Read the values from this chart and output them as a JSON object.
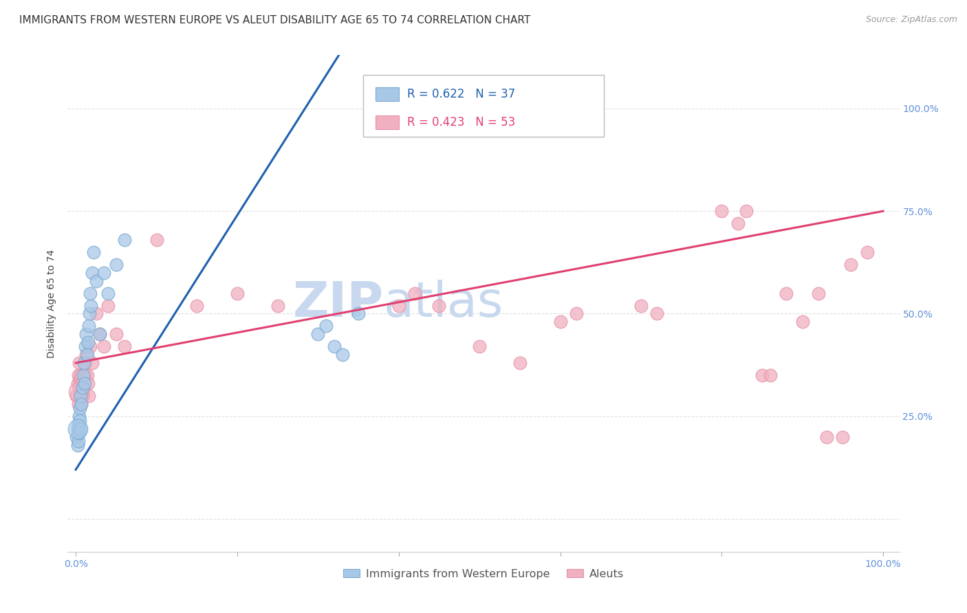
{
  "title": "IMMIGRANTS FROM WESTERN EUROPE VS ALEUT DISABILITY AGE 65 TO 74 CORRELATION CHART",
  "source": "Source: ZipAtlas.com",
  "ylabel": "Disability Age 65 to 74",
  "blue_R": 0.622,
  "blue_N": 37,
  "pink_R": 0.423,
  "pink_N": 53,
  "blue_color": "#a8c8e8",
  "pink_color": "#f0b0c0",
  "blue_edge_color": "#7aaad0",
  "pink_edge_color": "#e890a8",
  "blue_line_color": "#2060b0",
  "pink_line_color": "#e04070",
  "legend_label_blue": "Immigrants from Western Europe",
  "legend_label_pink": "Aleuts",
  "right_axis_color": "#6090d8",
  "watermark_color": "#c8d8ee",
  "background_color": "#ffffff",
  "grid_color": "#e0e0e0",
  "title_fontsize": 11,
  "axis_label_fontsize": 10,
  "tick_fontsize": 10,
  "legend_fontsize": 11.5,
  "blue_x": [
    0.001,
    0.002,
    0.002,
    0.003,
    0.003,
    0.004,
    0.004,
    0.005,
    0.005,
    0.006,
    0.006,
    0.007,
    0.008,
    0.009,
    0.01,
    0.011,
    0.012,
    0.013,
    0.014,
    0.015,
    0.016,
    0.017,
    0.018,
    0.019,
    0.02,
    0.022,
    0.025,
    0.03,
    0.035,
    0.04,
    0.05,
    0.06,
    0.3,
    0.31,
    0.32,
    0.33,
    0.35
  ],
  "blue_y": [
    0.2,
    0.18,
    0.22,
    0.23,
    0.19,
    0.21,
    0.25,
    0.27,
    0.24,
    0.3,
    0.22,
    0.28,
    0.32,
    0.35,
    0.38,
    0.33,
    0.42,
    0.45,
    0.4,
    0.43,
    0.47,
    0.5,
    0.55,
    0.52,
    0.6,
    0.65,
    0.58,
    0.45,
    0.6,
    0.55,
    0.62,
    0.68,
    0.45,
    0.47,
    0.42,
    0.4,
    0.5
  ],
  "blue_sizes": [
    180,
    180,
    180,
    240,
    240,
    180,
    180,
    180,
    180,
    180,
    180,
    180,
    180,
    180,
    180,
    180,
    180,
    180,
    180,
    180,
    180,
    180,
    180,
    180,
    180,
    180,
    180,
    180,
    180,
    180,
    180,
    180,
    180,
    180,
    180,
    180,
    180
  ],
  "pink_x": [
    0.001,
    0.002,
    0.003,
    0.003,
    0.004,
    0.004,
    0.005,
    0.005,
    0.006,
    0.007,
    0.007,
    0.008,
    0.009,
    0.01,
    0.011,
    0.012,
    0.013,
    0.014,
    0.015,
    0.016,
    0.018,
    0.02,
    0.025,
    0.03,
    0.035,
    0.04,
    0.05,
    0.06,
    0.1,
    0.15,
    0.2,
    0.25,
    0.4,
    0.42,
    0.45,
    0.5,
    0.55,
    0.6,
    0.62,
    0.7,
    0.72,
    0.8,
    0.82,
    0.83,
    0.85,
    0.86,
    0.88,
    0.9,
    0.92,
    0.93,
    0.95,
    0.96,
    0.98
  ],
  "pink_y": [
    0.3,
    0.33,
    0.28,
    0.35,
    0.32,
    0.38,
    0.3,
    0.34,
    0.35,
    0.28,
    0.33,
    0.3,
    0.3,
    0.32,
    0.35,
    0.38,
    0.4,
    0.35,
    0.33,
    0.3,
    0.42,
    0.38,
    0.5,
    0.45,
    0.42,
    0.52,
    0.45,
    0.42,
    0.68,
    0.52,
    0.55,
    0.52,
    0.52,
    0.55,
    0.52,
    0.42,
    0.38,
    0.48,
    0.5,
    0.52,
    0.5,
    0.75,
    0.72,
    0.75,
    0.35,
    0.35,
    0.55,
    0.48,
    0.55,
    0.2,
    0.2,
    0.62,
    0.65
  ],
  "pink_sizes": [
    180,
    180,
    300,
    300,
    180,
    180,
    180,
    180,
    180,
    180,
    180,
    180,
    180,
    180,
    180,
    180,
    180,
    180,
    180,
    180,
    180,
    180,
    180,
    180,
    180,
    180,
    180,
    180,
    180,
    180,
    180,
    180,
    180,
    180,
    180,
    180,
    180,
    180,
    180,
    180,
    180,
    180,
    180,
    180,
    180,
    180,
    180,
    180,
    180,
    180,
    180,
    180,
    180
  ]
}
